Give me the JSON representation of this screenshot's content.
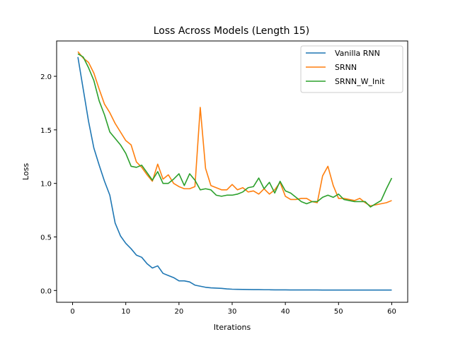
{
  "chart_data": {
    "type": "line",
    "title": "Loss Across Models (Length 15)",
    "xlabel": "Iterations",
    "ylabel": "Loss",
    "xlim": [
      -3,
      63
    ],
    "ylim": [
      -0.11,
      2.33
    ],
    "xticks": [
      0,
      10,
      20,
      30,
      40,
      50,
      60
    ],
    "yticks": [
      0.0,
      0.5,
      1.0,
      1.5,
      2.0
    ],
    "ytick_labels": [
      "0.0",
      "0.5",
      "1.0",
      "1.5",
      "2.0"
    ],
    "grid": false,
    "legend_position": "top-right",
    "x": [
      1,
      2,
      3,
      4,
      5,
      6,
      7,
      8,
      9,
      10,
      11,
      12,
      13,
      14,
      15,
      16,
      17,
      18,
      19,
      20,
      21,
      22,
      23,
      24,
      25,
      26,
      27,
      28,
      29,
      30,
      31,
      32,
      33,
      34,
      35,
      36,
      37,
      38,
      39,
      40,
      41,
      42,
      43,
      44,
      45,
      46,
      47,
      48,
      49,
      50,
      51,
      52,
      53,
      54,
      55,
      56,
      57,
      58,
      59,
      60
    ],
    "series": [
      {
        "name": "Vanilla RNN",
        "color": "#1f77b4",
        "values": [
          2.18,
          1.88,
          1.58,
          1.33,
          1.17,
          1.02,
          0.89,
          0.63,
          0.51,
          0.44,
          0.39,
          0.33,
          0.31,
          0.25,
          0.21,
          0.23,
          0.16,
          0.14,
          0.12,
          0.09,
          0.09,
          0.08,
          0.05,
          0.04,
          0.03,
          0.025,
          0.022,
          0.02,
          0.015,
          0.012,
          0.011,
          0.01,
          0.009,
          0.008,
          0.008,
          0.007,
          0.007,
          0.006,
          0.006,
          0.006,
          0.005,
          0.005,
          0.005,
          0.005,
          0.005,
          0.005,
          0.004,
          0.004,
          0.004,
          0.004,
          0.004,
          0.004,
          0.004,
          0.004,
          0.004,
          0.004,
          0.004,
          0.004,
          0.004,
          0.004
        ]
      },
      {
        "name": "SRNN",
        "color": "#ff7f0e",
        "values": [
          2.23,
          2.17,
          2.13,
          2.03,
          1.88,
          1.74,
          1.66,
          1.56,
          1.48,
          1.4,
          1.36,
          1.2,
          1.15,
          1.08,
          1.02,
          1.18,
          1.04,
          1.08,
          1.0,
          0.97,
          0.95,
          0.95,
          0.97,
          1.71,
          1.14,
          0.98,
          0.96,
          0.94,
          0.94,
          0.99,
          0.94,
          0.96,
          0.92,
          0.93,
          0.9,
          0.95,
          0.9,
          0.94,
          1.01,
          0.88,
          0.85,
          0.85,
          0.86,
          0.86,
          0.83,
          0.82,
          1.07,
          1.16,
          0.98,
          0.86,
          0.86,
          0.85,
          0.84,
          0.86,
          0.82,
          0.79,
          0.8,
          0.81,
          0.82,
          0.84
        ]
      },
      {
        "name": "SRNN_W_Init",
        "color": "#2ca02c",
        "values": [
          2.21,
          2.18,
          2.08,
          1.96,
          1.77,
          1.64,
          1.48,
          1.42,
          1.36,
          1.28,
          1.16,
          1.15,
          1.17,
          1.1,
          1.03,
          1.11,
          1.0,
          1.0,
          1.04,
          1.09,
          0.98,
          1.09,
          1.03,
          0.94,
          0.95,
          0.94,
          0.89,
          0.88,
          0.89,
          0.89,
          0.9,
          0.92,
          0.96,
          0.97,
          1.05,
          0.95,
          1.01,
          0.91,
          1.02,
          0.93,
          0.91,
          0.87,
          0.83,
          0.81,
          0.83,
          0.83,
          0.87,
          0.89,
          0.87,
          0.9,
          0.85,
          0.84,
          0.83,
          0.83,
          0.83,
          0.78,
          0.81,
          0.84,
          0.95,
          1.05
        ]
      }
    ]
  }
}
